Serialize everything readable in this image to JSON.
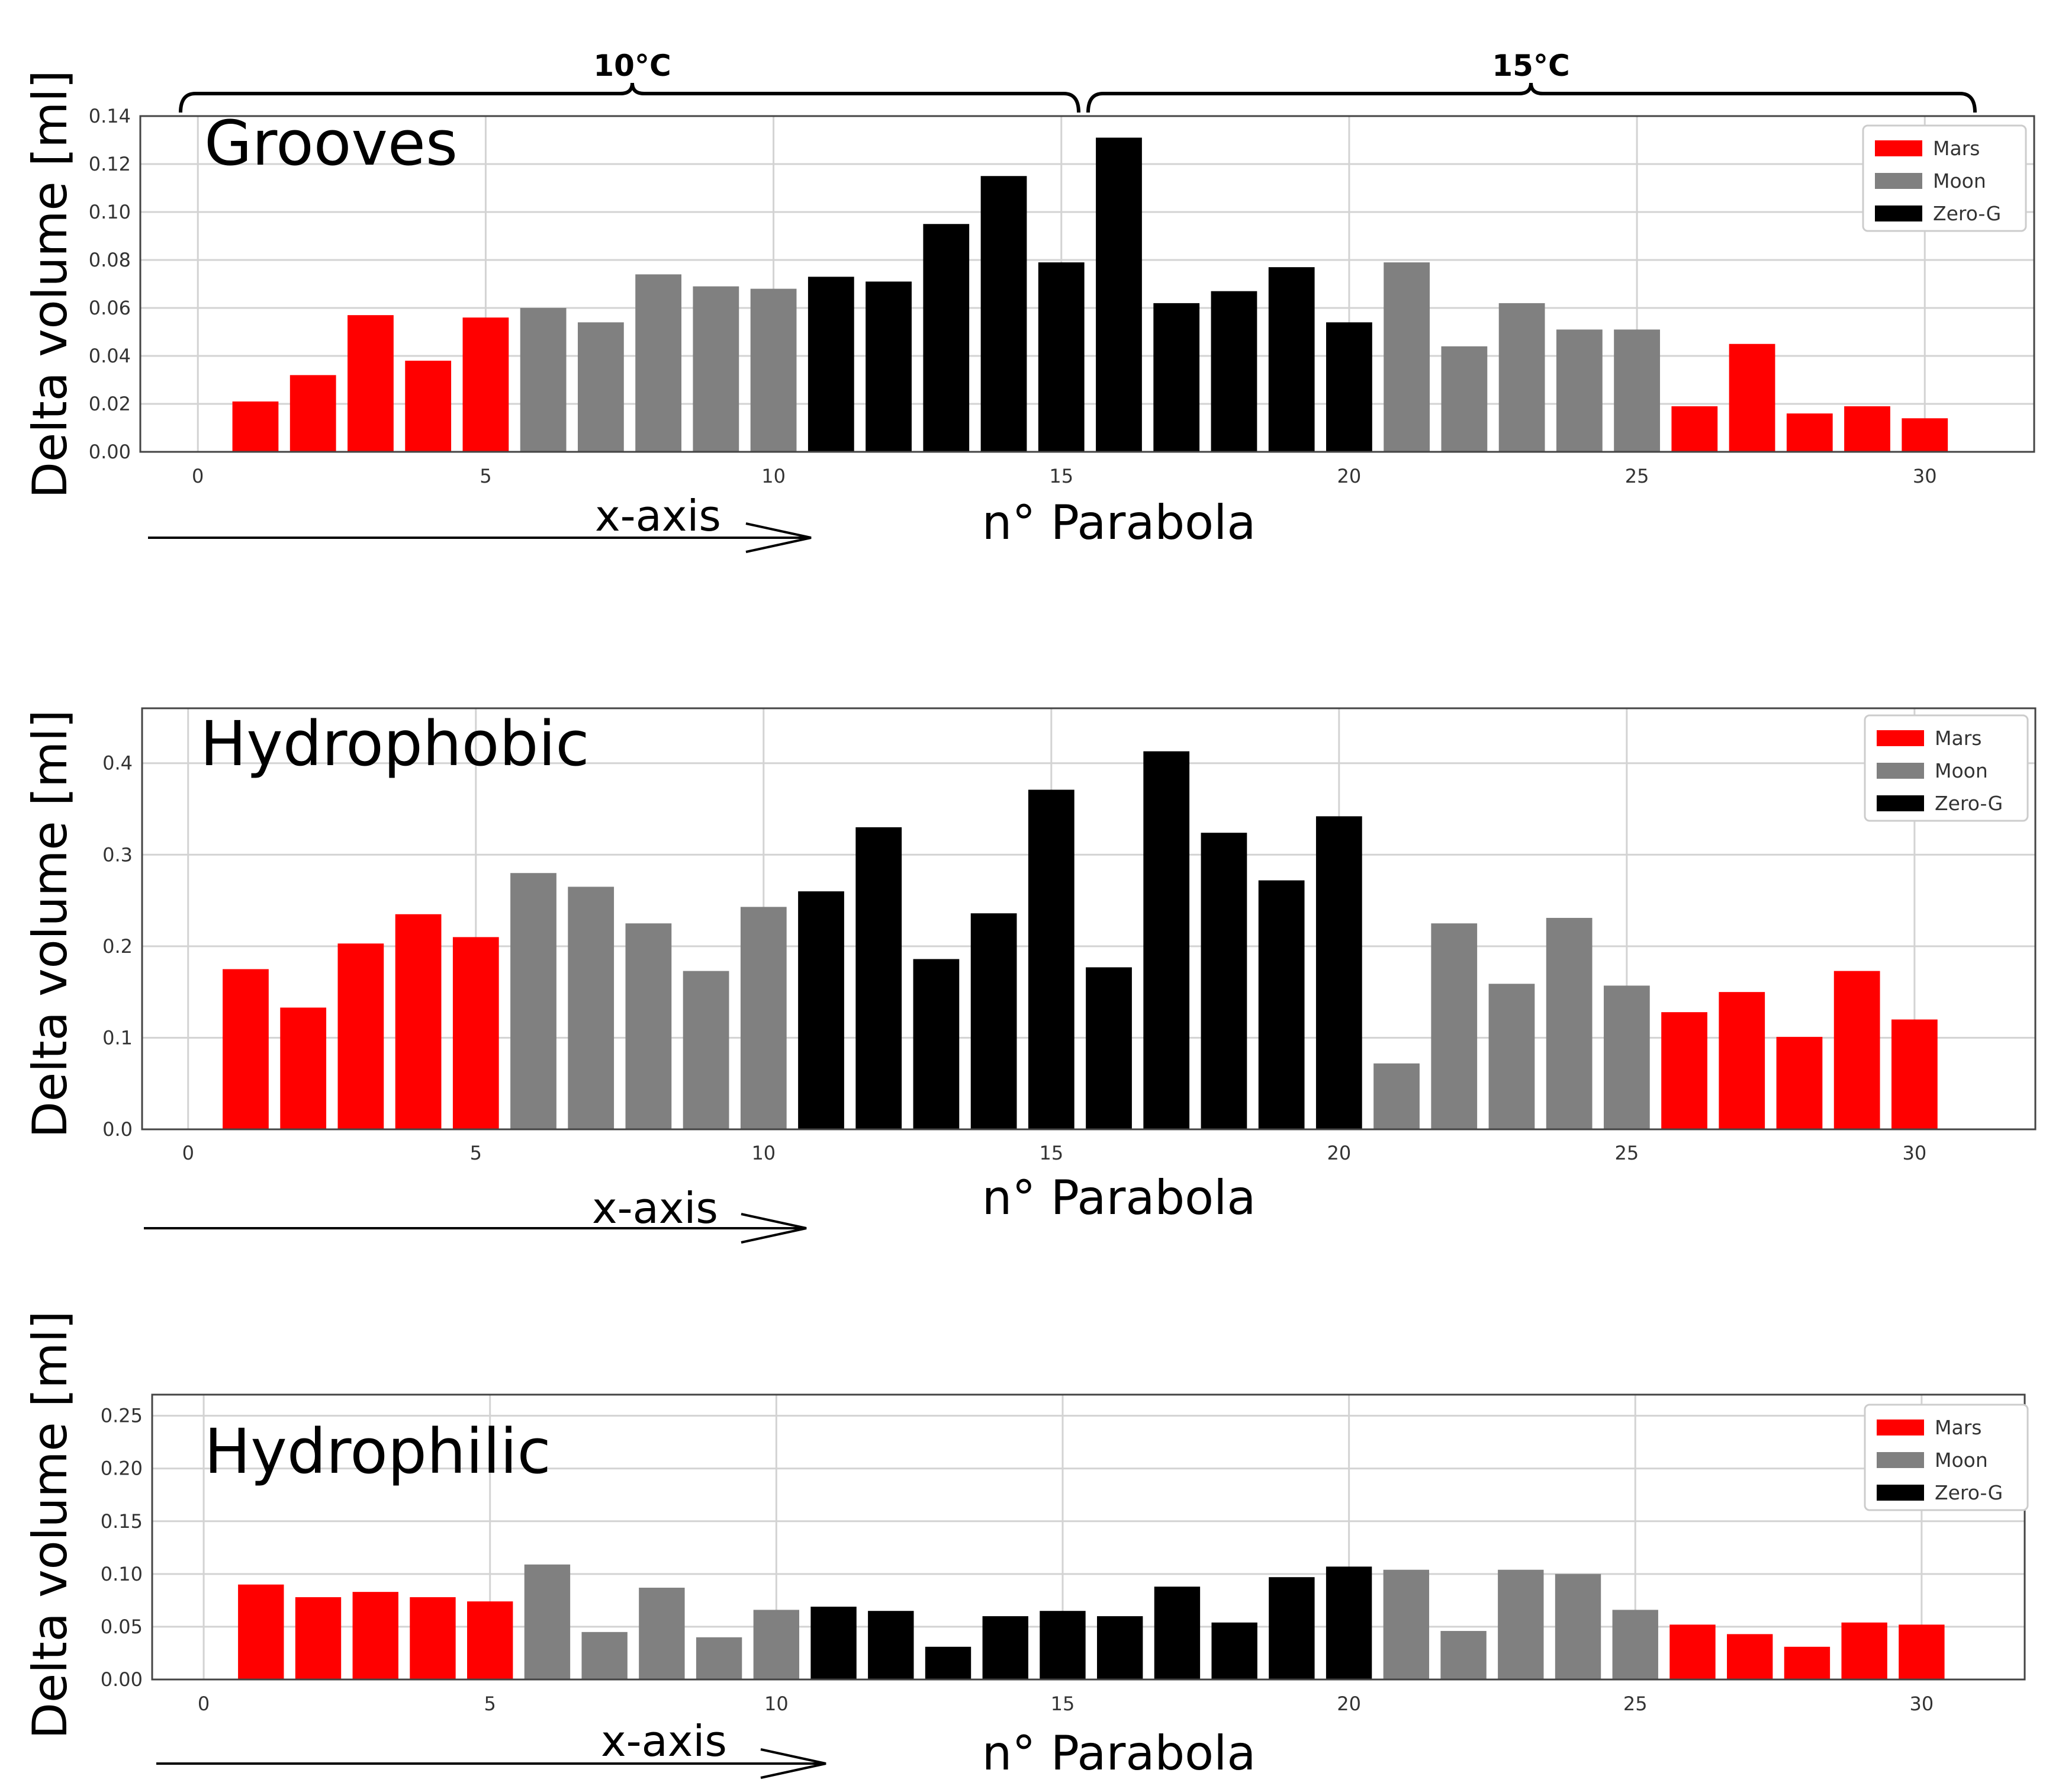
{
  "colors": {
    "mars": "#ff0000",
    "moon": "#808080",
    "zero_g": "#000000",
    "grid": "#d3d3d3",
    "axis": "#000000",
    "background": "#ffffff"
  },
  "temperature_labels": [
    "10°C",
    "15°C"
  ],
  "chart_data": [
    {
      "type": "bar",
      "title": "Grooves",
      "xlabel": "n° Parabola",
      "ylabel": "Delta volume [ml]",
      "arrow_label": "x-axis",
      "xlim": [
        -1,
        31.9
      ],
      "ylim": [
        0,
        0.14
      ],
      "xticks": [
        0,
        5,
        10,
        15,
        20,
        25,
        30
      ],
      "yticks": [
        0,
        0.02,
        0.04,
        0.06,
        0.08,
        0.1,
        0.12,
        0.14
      ],
      "ytick_labels": [
        "0.00",
        "0.02",
        "0.04",
        "0.06",
        "0.08",
        "0.10",
        "0.12",
        "0.14"
      ],
      "legend": [
        "Mars",
        "Moon",
        "Zero-G"
      ],
      "legend_position": "top-right",
      "grid": true,
      "x": [
        1,
        2,
        3,
        4,
        5,
        6,
        7,
        8,
        9,
        10,
        11,
        12,
        13,
        14,
        15,
        16,
        17,
        18,
        19,
        20,
        21,
        22,
        23,
        24,
        25,
        26,
        27,
        28,
        29,
        30
      ],
      "categories": [
        "Mars",
        "Mars",
        "Mars",
        "Mars",
        "Mars",
        "Moon",
        "Moon",
        "Moon",
        "Moon",
        "Moon",
        "Zero-G",
        "Zero-G",
        "Zero-G",
        "Zero-G",
        "Zero-G",
        "Zero-G",
        "Zero-G",
        "Zero-G",
        "Zero-G",
        "Zero-G",
        "Moon",
        "Moon",
        "Moon",
        "Moon",
        "Moon",
        "Mars",
        "Mars",
        "Mars",
        "Mars",
        "Mars"
      ],
      "values": [
        0.021,
        0.032,
        0.057,
        0.038,
        0.056,
        0.06,
        0.054,
        0.074,
        0.069,
        0.068,
        0.073,
        0.071,
        0.095,
        0.115,
        0.079,
        0.131,
        0.062,
        0.067,
        0.077,
        0.054,
        0.079,
        0.044,
        0.062,
        0.051,
        0.051,
        0.019,
        0.045,
        0.016,
        0.019,
        0.014
      ]
    },
    {
      "type": "bar",
      "title": "Hydrophobic",
      "xlabel": "n° Parabola",
      "ylabel": "Delta volume [ml]",
      "arrow_label": "x-axis",
      "xlim": [
        -0.8,
        32.1
      ],
      "ylim": [
        0,
        0.46
      ],
      "xticks": [
        0,
        5,
        10,
        15,
        20,
        25,
        30
      ],
      "yticks": [
        0,
        0.1,
        0.2,
        0.3,
        0.4
      ],
      "ytick_labels": [
        "0.0",
        "0.1",
        "0.2",
        "0.3",
        "0.4"
      ],
      "legend": [
        "Mars",
        "Moon",
        "Zero-G"
      ],
      "legend_position": "top-right",
      "grid": true,
      "x": [
        1,
        2,
        3,
        4,
        5,
        6,
        7,
        8,
        9,
        10,
        11,
        12,
        13,
        14,
        15,
        16,
        17,
        18,
        19,
        20,
        21,
        22,
        23,
        24,
        25,
        26,
        27,
        28,
        29,
        30
      ],
      "categories": [
        "Mars",
        "Mars",
        "Mars",
        "Mars",
        "Mars",
        "Moon",
        "Moon",
        "Moon",
        "Moon",
        "Moon",
        "Zero-G",
        "Zero-G",
        "Zero-G",
        "Zero-G",
        "Zero-G",
        "Zero-G",
        "Zero-G",
        "Zero-G",
        "Zero-G",
        "Zero-G",
        "Moon",
        "Moon",
        "Moon",
        "Moon",
        "Moon",
        "Mars",
        "Mars",
        "Mars",
        "Mars",
        "Mars"
      ],
      "values": [
        0.175,
        0.133,
        0.203,
        0.235,
        0.21,
        0.28,
        0.265,
        0.225,
        0.173,
        0.243,
        0.26,
        0.33,
        0.186,
        0.236,
        0.371,
        0.177,
        0.413,
        0.324,
        0.272,
        0.342,
        0.072,
        0.225,
        0.159,
        0.231,
        0.157,
        0.128,
        0.15,
        0.101,
        0.173,
        0.12
      ]
    },
    {
      "type": "bar",
      "title": "Hydrophilic",
      "xlabel": "n° Parabola",
      "ylabel": "Delta volume [ml]",
      "arrow_label": "x-axis",
      "xlim": [
        -0.9,
        31.8
      ],
      "ylim": [
        0,
        0.27
      ],
      "xticks": [
        0,
        5,
        10,
        15,
        20,
        25,
        30
      ],
      "yticks": [
        0,
        0.05,
        0.1,
        0.15,
        0.2,
        0.25
      ],
      "ytick_labels": [
        "0.00",
        "0.05",
        "0.10",
        "0.15",
        "0.20",
        "0.25"
      ],
      "legend": [
        "Mars",
        "Moon",
        "Zero-G"
      ],
      "legend_position": "top-right",
      "grid": true,
      "x": [
        1,
        2,
        3,
        4,
        5,
        6,
        7,
        8,
        9,
        10,
        11,
        12,
        13,
        14,
        15,
        16,
        17,
        18,
        19,
        20,
        21,
        22,
        23,
        24,
        25,
        26,
        27,
        28,
        29,
        30
      ],
      "categories": [
        "Mars",
        "Mars",
        "Mars",
        "Mars",
        "Mars",
        "Moon",
        "Moon",
        "Moon",
        "Moon",
        "Moon",
        "Zero-G",
        "Zero-G",
        "Zero-G",
        "Zero-G",
        "Zero-G",
        "Zero-G",
        "Zero-G",
        "Zero-G",
        "Zero-G",
        "Zero-G",
        "Moon",
        "Moon",
        "Moon",
        "Moon",
        "Moon",
        "Mars",
        "Mars",
        "Mars",
        "Mars",
        "Mars"
      ],
      "values": [
        0.09,
        0.078,
        0.083,
        0.078,
        0.074,
        0.109,
        0.045,
        0.087,
        0.04,
        0.066,
        0.069,
        0.065,
        0.031,
        0.06,
        0.065,
        0.06,
        0.088,
        0.054,
        0.097,
        0.107,
        0.104,
        0.046,
        0.104,
        0.1,
        0.066,
        0.052,
        0.043,
        0.031,
        0.054,
        0.052
      ]
    }
  ]
}
